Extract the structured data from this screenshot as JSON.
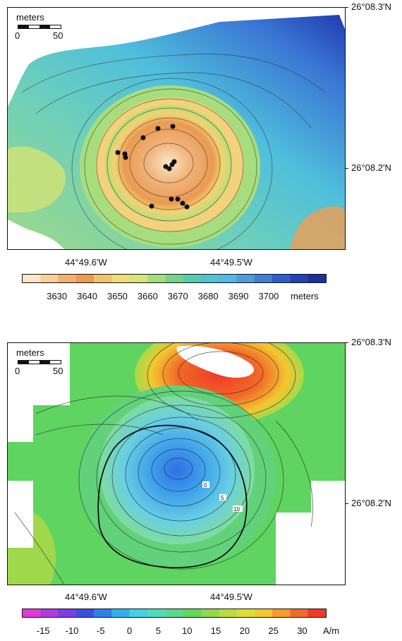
{
  "top_map": {
    "lat_top": "26°08.3'N",
    "lat_mid": "26°08.2'N",
    "lon_left": "44°49.6'W",
    "lon_right": "44°49.5'W",
    "scale": {
      "title": "meters",
      "min": "0",
      "max": "50"
    },
    "colorbar": {
      "ticks": [
        "3630",
        "3640",
        "3650",
        "3660",
        "3670",
        "3680",
        "3690",
        "3700"
      ],
      "unit": "meters",
      "colors": [
        "#fbe7c8",
        "#f8cf9a",
        "#f3b071",
        "#ee9a4f",
        "#f0c36b",
        "#f2dd7a",
        "#d8e57a",
        "#a6dd7b",
        "#73d58d",
        "#56cbb0",
        "#4fc4cf",
        "#55b7e3",
        "#4f9be0",
        "#3f7ed6",
        "#2c5ec8",
        "#2342b6",
        "#1f2fa0"
      ]
    },
    "survey_points_count_hint": "black dots"
  },
  "bottom_map": {
    "lat_top": "26°08.3'N",
    "lat_mid": "26°08.2'N",
    "lon_left": "44°49.6'W",
    "lon_right": "44°49.5'W",
    "scale": {
      "title": "meters",
      "min": "0",
      "max": "50"
    },
    "contour_labels": [
      "0",
      "5",
      "10"
    ],
    "colorbar": {
      "ticks": [
        "-15",
        "-10",
        "-5",
        "0",
        "5",
        "10",
        "15",
        "20",
        "25",
        "30"
      ],
      "unit": "A/m",
      "colors": [
        "#e03ad7",
        "#b03ae0",
        "#7a3fe3",
        "#3d4fe3",
        "#2f7fe8",
        "#2fb0ec",
        "#42d1e6",
        "#4fdcb8",
        "#5ad98a",
        "#63d65e",
        "#8ed94e",
        "#b8dc3d",
        "#dedd35",
        "#f3c62f",
        "#f59a2c",
        "#f26a29",
        "#ee3b27"
      ]
    }
  }
}
